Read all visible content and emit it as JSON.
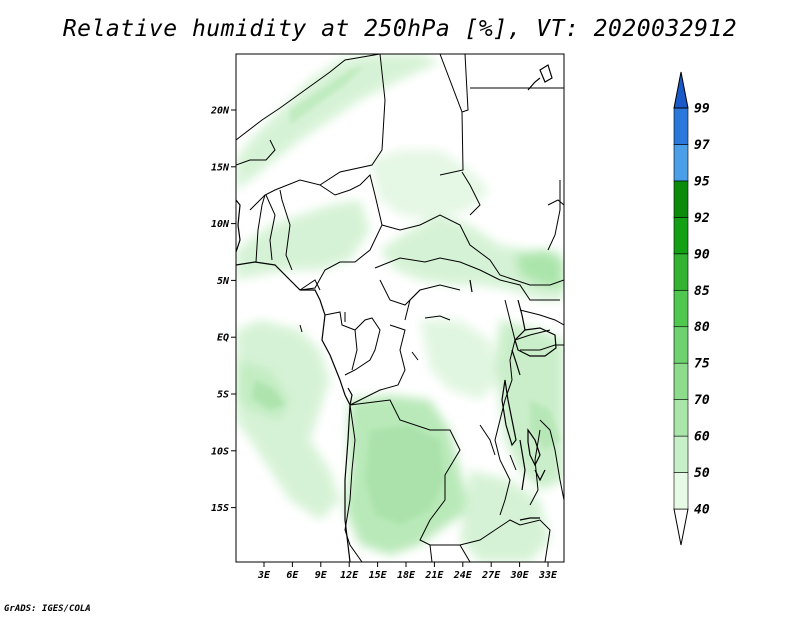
{
  "title": "Relative humidity at 250hPa [%], VT: 2020032912",
  "credit": "GrADS: IGES/COLA",
  "map": {
    "lat_ticks": [
      "20N",
      "15N",
      "10N",
      "5N",
      "EQ",
      "5S",
      "10S",
      "15S"
    ],
    "lon_ticks": [
      "3E",
      "6E",
      "9E",
      "12E",
      "15E",
      "18E",
      "21E",
      "24E",
      "27E",
      "30E",
      "33E"
    ]
  },
  "colorbar": {
    "levels": [
      "40",
      "50",
      "60",
      "70",
      "75",
      "80",
      "85",
      "90",
      "92",
      "95",
      "97",
      "99"
    ],
    "colors": [
      "#ffffff",
      "#e6fae6",
      "#c8f0c8",
      "#aae6aa",
      "#8cdc8c",
      "#6ed26e",
      "#50c850",
      "#32b432",
      "#14a014",
      "#0a8c0a",
      "#4a9fe8",
      "#2a78dc",
      "#1a5ac8"
    ]
  }
}
